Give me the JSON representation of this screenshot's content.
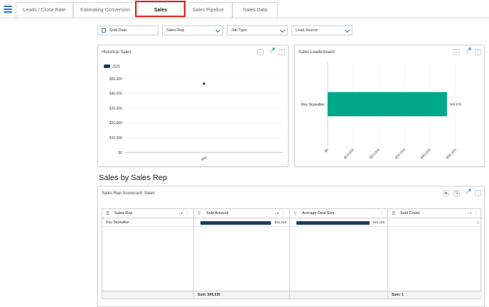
{
  "tabs": [
    {
      "label": "Leads / Close Rate"
    },
    {
      "label": "Estimating Conversion"
    },
    {
      "label": "Sales"
    },
    {
      "label": "Sales Pipeline"
    },
    {
      "label": "Sales Data"
    }
  ],
  "active_tab": "Sales",
  "filters": {
    "sold_date": "Sold Date",
    "sales_rep": "Sales Rep",
    "job_type": "Job Type",
    "lead_source": "Lead Source"
  },
  "historical_sales": {
    "title": "Historical Sales",
    "legend": "2025"
  },
  "sales_leaderboard": {
    "title": "Sales Leaderboard"
  },
  "section_title": "Sales by Sales Rep",
  "scorecard": {
    "title": "Sales Rep Scorecard: Sales",
    "columns": [
      "Sales Rep",
      "Sold Amount",
      "Average Deal Size",
      "Sold Count"
    ],
    "rows": [
      {
        "sales_rep": "Rey Skywalker",
        "sold_amount": "$46,635",
        "avg_deal": "$46,635",
        "sold_count": "1"
      }
    ],
    "sold_amount_fill": 1.0,
    "avg_deal_fill": 1.0,
    "footer_sold_amount": "Sum: $46,635",
    "footer_sold_count": "Sum: 1"
  },
  "colors": {
    "accent": "#2f6fc0",
    "highlight": "#e2231a",
    "leaderboard_bar": "#00a88a",
    "dark_bar": "#1f3c5e"
  },
  "chart_data": [
    {
      "type": "scatter",
      "title": "Historical Sales",
      "series": [
        {
          "name": "2025",
          "x": [
            "Mar"
          ],
          "values": [
            46635
          ]
        }
      ],
      "categories": [
        "Mar"
      ],
      "yticks": [
        "$0",
        "$10,000",
        "$20,000",
        "$30,000",
        "$40,000",
        "$50,000"
      ],
      "ylim": [
        0,
        50000
      ],
      "legend": "top-left",
      "grid": true
    },
    {
      "type": "bar",
      "orientation": "horizontal",
      "title": "Sales Leaderboard",
      "categories": [
        "Rey Skywalker"
      ],
      "values": [
        46635
      ],
      "data_labels": [
        "$46,635"
      ],
      "xticks": [
        "$0",
        "$10,000",
        "$20,000",
        "$30,000",
        "$40,000",
        "$50,000"
      ],
      "xlim": [
        0,
        50000
      ],
      "grid": true
    }
  ]
}
